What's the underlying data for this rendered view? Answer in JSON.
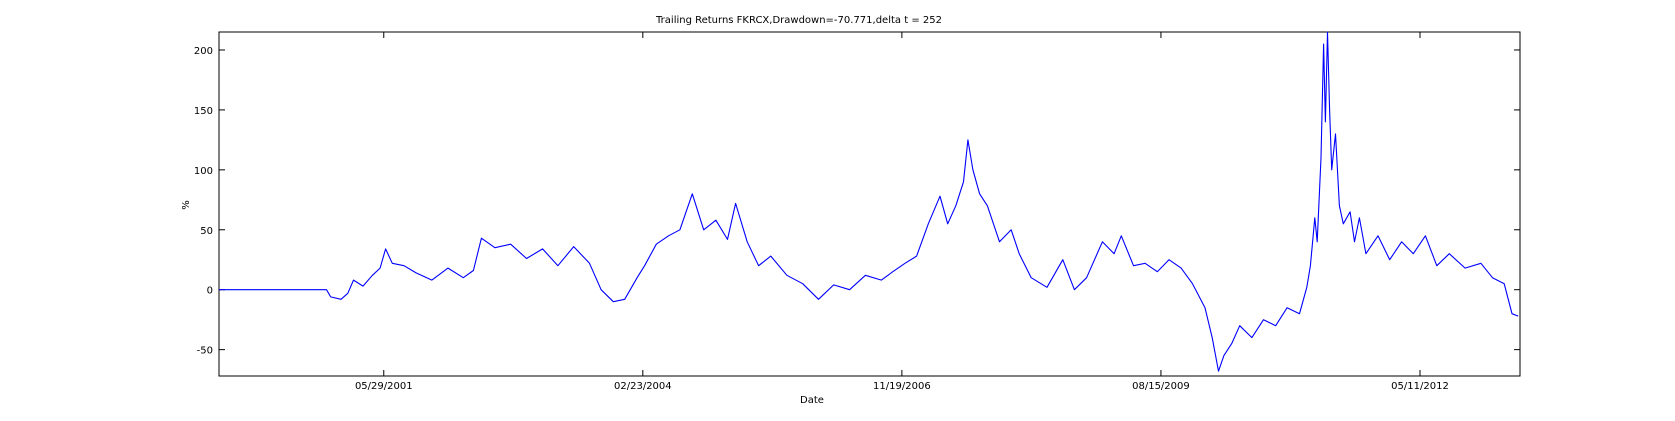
{
  "chart_data": {
    "type": "line",
    "title": "Trailing Returns FKRCX,Drawdown=-70.771,delta t = 252",
    "xlabel": "Date",
    "ylabel": "%",
    "xlim": [
      "1999-09-01",
      "2013-06-01"
    ],
    "ylim": [
      -72,
      215
    ],
    "x_ticks": [
      "05/29/2001",
      "02/23/2004",
      "11/19/2006",
      "08/15/2009",
      "05/11/2012"
    ],
    "x_tick_dates": [
      "2001-05-29",
      "2004-02-23",
      "2006-11-19",
      "2009-08-15",
      "2012-05-11"
    ],
    "y_ticks": [
      -50,
      0,
      50,
      100,
      150,
      200
    ],
    "grid": false,
    "series": [
      {
        "color": "#0000ff",
        "points": [
          [
            "1999-09-01",
            0
          ],
          [
            "2000-10-20",
            0
          ],
          [
            "2000-11-05",
            -6
          ],
          [
            "2000-12-15",
            -8
          ],
          [
            "2001-01-10",
            -3
          ],
          [
            "2001-02-01",
            8
          ],
          [
            "2001-03-10",
            3
          ],
          [
            "2001-04-15",
            12
          ],
          [
            "2001-05-15",
            18
          ],
          [
            "2001-06-05",
            34
          ],
          [
            "2001-07-01",
            22
          ],
          [
            "2001-08-15",
            20
          ],
          [
            "2001-10-01",
            14
          ],
          [
            "2001-12-01",
            8
          ],
          [
            "2002-02-01",
            18
          ],
          [
            "2002-04-01",
            10
          ],
          [
            "2002-05-10",
            16
          ],
          [
            "2002-06-10",
            43
          ],
          [
            "2002-08-01",
            35
          ],
          [
            "2002-10-01",
            38
          ],
          [
            "2002-12-01",
            26
          ],
          [
            "2003-02-01",
            34
          ],
          [
            "2003-04-01",
            20
          ],
          [
            "2003-06-01",
            36
          ],
          [
            "2003-08-01",
            22
          ],
          [
            "2003-09-15",
            0
          ],
          [
            "2003-11-01",
            -10
          ],
          [
            "2003-12-15",
            -8
          ],
          [
            "2004-02-01",
            10
          ],
          [
            "2004-03-01",
            20
          ],
          [
            "2004-04-15",
            38
          ],
          [
            "2004-06-01",
            45
          ],
          [
            "2004-07-15",
            50
          ],
          [
            "2004-09-01",
            80
          ],
          [
            "2004-10-15",
            50
          ],
          [
            "2004-12-01",
            58
          ],
          [
            "2005-01-15",
            42
          ],
          [
            "2005-02-15",
            72
          ],
          [
            "2005-04-01",
            40
          ],
          [
            "2005-05-15",
            20
          ],
          [
            "2005-07-01",
            28
          ],
          [
            "2005-09-01",
            12
          ],
          [
            "2005-11-01",
            5
          ],
          [
            "2006-01-01",
            -8
          ],
          [
            "2006-03-01",
            4
          ],
          [
            "2006-05-01",
            0
          ],
          [
            "2006-07-01",
            12
          ],
          [
            "2006-09-01",
            8
          ],
          [
            "2006-10-15",
            15
          ],
          [
            "2006-12-01",
            22
          ],
          [
            "2007-01-15",
            28
          ],
          [
            "2007-03-01",
            55
          ],
          [
            "2007-04-15",
            78
          ],
          [
            "2007-05-15",
            55
          ],
          [
            "2007-06-15",
            70
          ],
          [
            "2007-07-15",
            90
          ],
          [
            "2007-08-01",
            125
          ],
          [
            "2007-08-20",
            100
          ],
          [
            "2007-09-15",
            80
          ],
          [
            "2007-10-15",
            70
          ],
          [
            "2007-12-01",
            40
          ],
          [
            "2008-01-15",
            50
          ],
          [
            "2008-02-15",
            30
          ],
          [
            "2008-04-01",
            10
          ],
          [
            "2008-06-01",
            2
          ],
          [
            "2008-08-01",
            25
          ],
          [
            "2008-09-15",
            0
          ],
          [
            "2008-11-01",
            10
          ],
          [
            "2009-01-01",
            40
          ],
          [
            "2009-02-15",
            30
          ],
          [
            "2009-03-15",
            45
          ],
          [
            "2009-05-01",
            20
          ],
          [
            "2009-06-15",
            22
          ],
          [
            "2009-08-01",
            15
          ],
          [
            "2009-09-15",
            25
          ],
          [
            "2009-11-01",
            18
          ],
          [
            "2009-12-15",
            5
          ],
          [
            "2010-02-01",
            -15
          ],
          [
            "2010-03-01",
            -40
          ],
          [
            "2010-03-25",
            -68
          ],
          [
            "2010-04-15",
            -55
          ],
          [
            "2010-05-15",
            -45
          ],
          [
            "2010-06-15",
            -30
          ],
          [
            "2010-08-01",
            -40
          ],
          [
            "2010-09-15",
            -25
          ],
          [
            "2010-11-01",
            -30
          ],
          [
            "2010-12-15",
            -15
          ],
          [
            "2011-02-01",
            -20
          ],
          [
            "2011-03-01",
            2
          ],
          [
            "2011-03-15",
            20
          ],
          [
            "2011-04-01",
            60
          ],
          [
            "2011-04-10",
            40
          ],
          [
            "2011-04-25",
            110
          ],
          [
            "2011-05-05",
            205
          ],
          [
            "2011-05-12",
            140
          ],
          [
            "2011-05-20",
            215
          ],
          [
            "2011-05-28",
            150
          ],
          [
            "2011-06-05",
            100
          ],
          [
            "2011-06-20",
            130
          ],
          [
            "2011-07-05",
            70
          ],
          [
            "2011-07-20",
            55
          ],
          [
            "2011-08-15",
            65
          ],
          [
            "2011-09-01",
            40
          ],
          [
            "2011-09-20",
            60
          ],
          [
            "2011-10-15",
            30
          ],
          [
            "2011-12-01",
            45
          ],
          [
            "2012-01-15",
            25
          ],
          [
            "2012-03-01",
            40
          ],
          [
            "2012-04-15",
            30
          ],
          [
            "2012-06-01",
            45
          ],
          [
            "2012-07-15",
            20
          ],
          [
            "2012-09-01",
            30
          ],
          [
            "2012-11-01",
            18
          ],
          [
            "2013-01-01",
            22
          ],
          [
            "2013-02-15",
            10
          ],
          [
            "2013-04-01",
            5
          ],
          [
            "2013-05-01",
            -20
          ],
          [
            "2013-05-25",
            -22
          ]
        ]
      }
    ]
  }
}
